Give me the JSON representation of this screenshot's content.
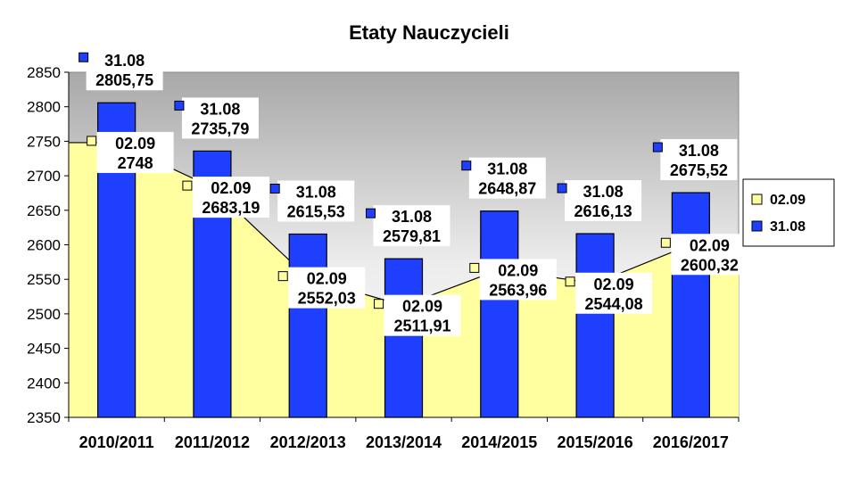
{
  "chart_data": {
    "type": "bar",
    "title": "Etaty Nauczycieli",
    "categories": [
      "2010/2011",
      "2011/2012",
      "2012/2013",
      "2013/2014",
      "2014/2015",
      "2015/2016",
      "2016/2017"
    ],
    "series": [
      {
        "name": "31.08",
        "type": "bar",
        "color": "#1f3fff",
        "values": [
          2805.75,
          2735.79,
          2615.53,
          2579.81,
          2648.87,
          2616.13,
          2675.52
        ],
        "labels": [
          "2805,75",
          "2735,79",
          "2615,53",
          "2579,81",
          "2648,87",
          "2616,13",
          "2675,52"
        ]
      },
      {
        "name": "02.09",
        "type": "area",
        "color": "#ffffa0",
        "values": [
          2748,
          2683.19,
          2552.03,
          2511.91,
          2563.96,
          2544.08,
          2600.32
        ],
        "labels": [
          "2748",
          "2683,19",
          "2552,03",
          "2511,91",
          "2563,96",
          "2544,08",
          "2600,32"
        ]
      }
    ],
    "y_ticks": [
      "2350",
      "2400",
      "2450",
      "2500",
      "2550",
      "2600",
      "2650",
      "2700",
      "2750",
      "2800",
      "2850"
    ],
    "ylim": [
      2350,
      2850
    ],
    "grid": false,
    "legend_position": "right",
    "legend": [
      "02.09",
      "31.08"
    ]
  }
}
